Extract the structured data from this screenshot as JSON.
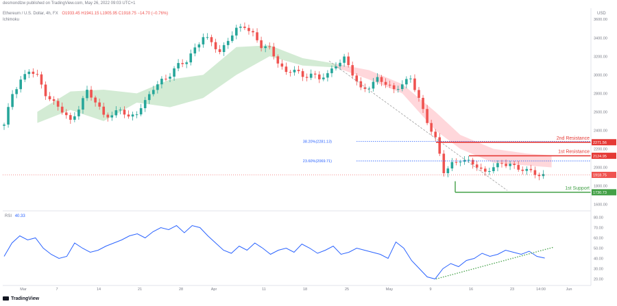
{
  "header": {
    "publisher_line": "desmondlzw published on TradingView.com, May 26, 2022 09:03 UTC+1",
    "symbol": "Ethereum / U.S. Dollar, 4h, FX",
    "ohlc": "O1933.45  H1941.15  L1905.95  C1918.75  −14.70 (−0.76%)",
    "indicator_main": "Ichimoku",
    "rsi_label": "RSI",
    "rsi_value": "40.33",
    "currency": "USD"
  },
  "footer": {
    "logo_text": "TradingView"
  },
  "colors": {
    "up": "#26a69a",
    "down": "#ef5350",
    "cloud_bull": "#c8e6c9",
    "cloud_bear": "#ffcdd2",
    "fib": "#2962ff",
    "resistance": "#e53935",
    "support": "#43a047",
    "rsi": "#2962ff",
    "rsi_trend": "#43a047",
    "price_line": "#ef5350",
    "trend_dash": "#9e9e9e"
  },
  "chart_data": [
    {
      "type": "candlestick",
      "title": "Ethereum / U.S. Dollar, 4h, FX",
      "x_tick_labels": [
        "Mar",
        "7",
        "14",
        "21",
        "28",
        "Apr",
        "11",
        "18",
        "25",
        "May",
        "9",
        "16",
        "23",
        "14:00",
        "Jun"
      ],
      "y_ticks": [
        1600,
        1800,
        2000,
        2200,
        2400,
        2600,
        2800,
        3000,
        3200,
        3400,
        3600
      ],
      "y_tick_labels": [
        "1600.00",
        "1800.00",
        "2000.00",
        "2200.00",
        "2400.00",
        "2600.00",
        "2800.00",
        "3000.00",
        "3200.00",
        "3400.00",
        "3600.00"
      ],
      "ylim": [
        1530,
        3720
      ],
      "price_path": [
        [
          0,
          2450
        ],
        [
          2,
          2800
        ],
        [
          4,
          2950
        ],
        [
          6,
          3040
        ],
        [
          8,
          2980
        ],
        [
          10,
          2800
        ],
        [
          12,
          2700
        ],
        [
          14,
          2600
        ],
        [
          16,
          2500
        ],
        [
          18,
          2650
        ],
        [
          20,
          2820
        ],
        [
          22,
          2700
        ],
        [
          24,
          2580
        ],
        [
          26,
          2560
        ],
        [
          28,
          2620
        ],
        [
          30,
          2540
        ],
        [
          32,
          2600
        ],
        [
          34,
          2700
        ],
        [
          36,
          2850
        ],
        [
          38,
          2950
        ],
        [
          40,
          3000
        ],
        [
          42,
          3100
        ],
        [
          44,
          3150
        ],
        [
          46,
          3300
        ],
        [
          48,
          3400
        ],
        [
          50,
          3350
        ],
        [
          52,
          3250
        ],
        [
          54,
          3380
        ],
        [
          56,
          3480
        ],
        [
          58,
          3530
        ],
        [
          60,
          3450
        ],
        [
          62,
          3300
        ],
        [
          64,
          3280
        ],
        [
          66,
          3150
        ],
        [
          68,
          3020
        ],
        [
          70,
          3050
        ],
        [
          72,
          2980
        ],
        [
          74,
          3020
        ],
        [
          76,
          2950
        ],
        [
          78,
          3000
        ],
        [
          80,
          3120
        ],
        [
          82,
          3180
        ],
        [
          84,
          3000
        ],
        [
          86,
          2850
        ],
        [
          88,
          2880
        ],
        [
          90,
          2950
        ],
        [
          92,
          2900
        ],
        [
          94,
          2850
        ],
        [
          96,
          2900
        ],
        [
          98,
          2950
        ],
        [
          100,
          2750
        ],
        [
          102,
          2500
        ],
        [
          104,
          2300
        ],
        [
          106,
          1950
        ],
        [
          108,
          2050
        ],
        [
          110,
          2080
        ],
        [
          112,
          2050
        ],
        [
          114,
          2020
        ],
        [
          116,
          1950
        ],
        [
          118,
          2000
        ],
        [
          120,
          2030
        ],
        [
          122,
          2050
        ],
        [
          124,
          1980
        ],
        [
          126,
          1960
        ],
        [
          128,
          1940
        ],
        [
          130,
          1918.75
        ]
      ],
      "cloud_top": [
        [
          8,
          2600
        ],
        [
          16,
          2820
        ],
        [
          24,
          2840
        ],
        [
          32,
          2800
        ],
        [
          40,
          2950
        ],
        [
          48,
          3000
        ],
        [
          56,
          3300
        ],
        [
          64,
          3320
        ],
        [
          72,
          3180
        ],
        [
          80,
          3120
        ],
        [
          88,
          3050
        ],
        [
          96,
          2900
        ],
        [
          104,
          2600
        ],
        [
          110,
          2350
        ],
        [
          118,
          2200
        ],
        [
          126,
          2150
        ],
        [
          132,
          2130
        ]
      ],
      "cloud_bottom": [
        [
          8,
          2480
        ],
        [
          16,
          2620
        ],
        [
          24,
          2500
        ],
        [
          32,
          2700
        ],
        [
          40,
          2650
        ],
        [
          48,
          2750
        ],
        [
          56,
          3000
        ],
        [
          64,
          3200
        ],
        [
          72,
          3100
        ],
        [
          80,
          3080
        ],
        [
          88,
          2950
        ],
        [
          96,
          2800
        ],
        [
          104,
          2400
        ],
        [
          110,
          2200
        ],
        [
          118,
          2050
        ],
        [
          126,
          2020
        ],
        [
          132,
          2000
        ]
      ],
      "horizontal_levels": [
        {
          "label": "38.20%(2281.13)",
          "value": 2281.13,
          "kind": "fib"
        },
        {
          "label": "23.60%(2069.71)",
          "value": 2069.71,
          "kind": "fib"
        },
        {
          "label": "2nd Resistance",
          "value": 2271.56,
          "tag": "2271.56",
          "kind": "resistance"
        },
        {
          "label": "1st Resistance",
          "value": 2124.95,
          "tag": "2124.95",
          "kind": "resistance"
        },
        {
          "label": "1st Support",
          "value": 1730.73,
          "tag": "1730.73",
          "kind": "support"
        },
        {
          "label": "",
          "value": 1918.75,
          "tag": "1918.75",
          "kind": "price"
        }
      ]
    },
    {
      "type": "line",
      "title": "RSI",
      "y_ticks": [
        20,
        30,
        40,
        50,
        60,
        70,
        80
      ],
      "y_tick_labels": [
        "20.00",
        "30.00",
        "40.00",
        "50.00",
        "60.00",
        "70.00",
        "80.00"
      ],
      "ylim": [
        15,
        85
      ],
      "values": [
        42,
        55,
        62,
        58,
        60,
        50,
        44,
        40,
        42,
        55,
        50,
        46,
        48,
        52,
        55,
        58,
        62,
        64,
        60,
        66,
        70,
        68,
        72,
        65,
        72,
        70,
        62,
        55,
        48,
        45,
        52,
        48,
        55,
        50,
        44,
        48,
        50,
        46,
        54,
        50,
        45,
        48,
        52,
        44,
        46,
        50,
        48,
        46,
        44,
        40,
        56,
        50,
        38,
        30,
        22,
        20,
        30,
        35,
        32,
        38,
        40,
        45,
        42,
        44,
        48,
        46,
        44,
        47,
        42,
        40.33
      ]
    }
  ]
}
